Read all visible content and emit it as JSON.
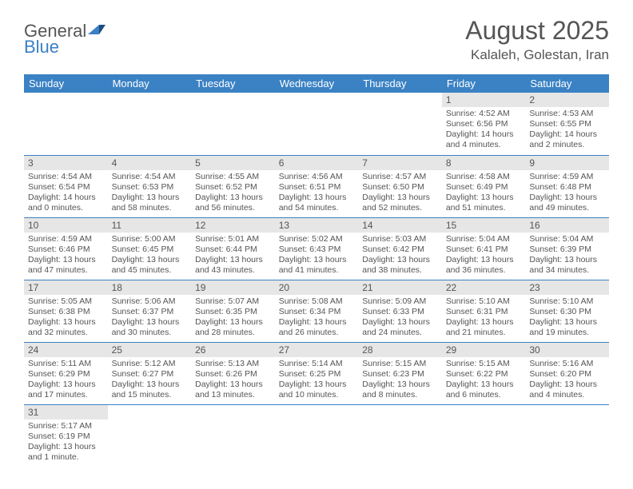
{
  "logo": {
    "general": "General",
    "blue": "Blue"
  },
  "title": "August 2025",
  "location": "Kalaleh, Golestan, Iran",
  "dayNames": [
    "Sunday",
    "Monday",
    "Tuesday",
    "Wednesday",
    "Thursday",
    "Friday",
    "Saturday"
  ],
  "colors": {
    "headerBg": "#3b82c4",
    "headerText": "#ffffff",
    "dayNumBg": "#e6e6e6",
    "textColor": "#555555",
    "rowBorder": "#3b82c4"
  },
  "weeks": [
    [
      null,
      null,
      null,
      null,
      null,
      {
        "n": "1",
        "sr": "Sunrise: 4:52 AM",
        "ss": "Sunset: 6:56 PM",
        "dl": "Daylight: 14 hours and 4 minutes."
      },
      {
        "n": "2",
        "sr": "Sunrise: 4:53 AM",
        "ss": "Sunset: 6:55 PM",
        "dl": "Daylight: 14 hours and 2 minutes."
      }
    ],
    [
      {
        "n": "3",
        "sr": "Sunrise: 4:54 AM",
        "ss": "Sunset: 6:54 PM",
        "dl": "Daylight: 14 hours and 0 minutes."
      },
      {
        "n": "4",
        "sr": "Sunrise: 4:54 AM",
        "ss": "Sunset: 6:53 PM",
        "dl": "Daylight: 13 hours and 58 minutes."
      },
      {
        "n": "5",
        "sr": "Sunrise: 4:55 AM",
        "ss": "Sunset: 6:52 PM",
        "dl": "Daylight: 13 hours and 56 minutes."
      },
      {
        "n": "6",
        "sr": "Sunrise: 4:56 AM",
        "ss": "Sunset: 6:51 PM",
        "dl": "Daylight: 13 hours and 54 minutes."
      },
      {
        "n": "7",
        "sr": "Sunrise: 4:57 AM",
        "ss": "Sunset: 6:50 PM",
        "dl": "Daylight: 13 hours and 52 minutes."
      },
      {
        "n": "8",
        "sr": "Sunrise: 4:58 AM",
        "ss": "Sunset: 6:49 PM",
        "dl": "Daylight: 13 hours and 51 minutes."
      },
      {
        "n": "9",
        "sr": "Sunrise: 4:59 AM",
        "ss": "Sunset: 6:48 PM",
        "dl": "Daylight: 13 hours and 49 minutes."
      }
    ],
    [
      {
        "n": "10",
        "sr": "Sunrise: 4:59 AM",
        "ss": "Sunset: 6:46 PM",
        "dl": "Daylight: 13 hours and 47 minutes."
      },
      {
        "n": "11",
        "sr": "Sunrise: 5:00 AM",
        "ss": "Sunset: 6:45 PM",
        "dl": "Daylight: 13 hours and 45 minutes."
      },
      {
        "n": "12",
        "sr": "Sunrise: 5:01 AM",
        "ss": "Sunset: 6:44 PM",
        "dl": "Daylight: 13 hours and 43 minutes."
      },
      {
        "n": "13",
        "sr": "Sunrise: 5:02 AM",
        "ss": "Sunset: 6:43 PM",
        "dl": "Daylight: 13 hours and 41 minutes."
      },
      {
        "n": "14",
        "sr": "Sunrise: 5:03 AM",
        "ss": "Sunset: 6:42 PM",
        "dl": "Daylight: 13 hours and 38 minutes."
      },
      {
        "n": "15",
        "sr": "Sunrise: 5:04 AM",
        "ss": "Sunset: 6:41 PM",
        "dl": "Daylight: 13 hours and 36 minutes."
      },
      {
        "n": "16",
        "sr": "Sunrise: 5:04 AM",
        "ss": "Sunset: 6:39 PM",
        "dl": "Daylight: 13 hours and 34 minutes."
      }
    ],
    [
      {
        "n": "17",
        "sr": "Sunrise: 5:05 AM",
        "ss": "Sunset: 6:38 PM",
        "dl": "Daylight: 13 hours and 32 minutes."
      },
      {
        "n": "18",
        "sr": "Sunrise: 5:06 AM",
        "ss": "Sunset: 6:37 PM",
        "dl": "Daylight: 13 hours and 30 minutes."
      },
      {
        "n": "19",
        "sr": "Sunrise: 5:07 AM",
        "ss": "Sunset: 6:35 PM",
        "dl": "Daylight: 13 hours and 28 minutes."
      },
      {
        "n": "20",
        "sr": "Sunrise: 5:08 AM",
        "ss": "Sunset: 6:34 PM",
        "dl": "Daylight: 13 hours and 26 minutes."
      },
      {
        "n": "21",
        "sr": "Sunrise: 5:09 AM",
        "ss": "Sunset: 6:33 PM",
        "dl": "Daylight: 13 hours and 24 minutes."
      },
      {
        "n": "22",
        "sr": "Sunrise: 5:10 AM",
        "ss": "Sunset: 6:31 PM",
        "dl": "Daylight: 13 hours and 21 minutes."
      },
      {
        "n": "23",
        "sr": "Sunrise: 5:10 AM",
        "ss": "Sunset: 6:30 PM",
        "dl": "Daylight: 13 hours and 19 minutes."
      }
    ],
    [
      {
        "n": "24",
        "sr": "Sunrise: 5:11 AM",
        "ss": "Sunset: 6:29 PM",
        "dl": "Daylight: 13 hours and 17 minutes."
      },
      {
        "n": "25",
        "sr": "Sunrise: 5:12 AM",
        "ss": "Sunset: 6:27 PM",
        "dl": "Daylight: 13 hours and 15 minutes."
      },
      {
        "n": "26",
        "sr": "Sunrise: 5:13 AM",
        "ss": "Sunset: 6:26 PM",
        "dl": "Daylight: 13 hours and 13 minutes."
      },
      {
        "n": "27",
        "sr": "Sunrise: 5:14 AM",
        "ss": "Sunset: 6:25 PM",
        "dl": "Daylight: 13 hours and 10 minutes."
      },
      {
        "n": "28",
        "sr": "Sunrise: 5:15 AM",
        "ss": "Sunset: 6:23 PM",
        "dl": "Daylight: 13 hours and 8 minutes."
      },
      {
        "n": "29",
        "sr": "Sunrise: 5:15 AM",
        "ss": "Sunset: 6:22 PM",
        "dl": "Daylight: 13 hours and 6 minutes."
      },
      {
        "n": "30",
        "sr": "Sunrise: 5:16 AM",
        "ss": "Sunset: 6:20 PM",
        "dl": "Daylight: 13 hours and 4 minutes."
      }
    ],
    [
      {
        "n": "31",
        "sr": "Sunrise: 5:17 AM",
        "ss": "Sunset: 6:19 PM",
        "dl": "Daylight: 13 hours and 1 minute."
      },
      null,
      null,
      null,
      null,
      null,
      null
    ]
  ]
}
